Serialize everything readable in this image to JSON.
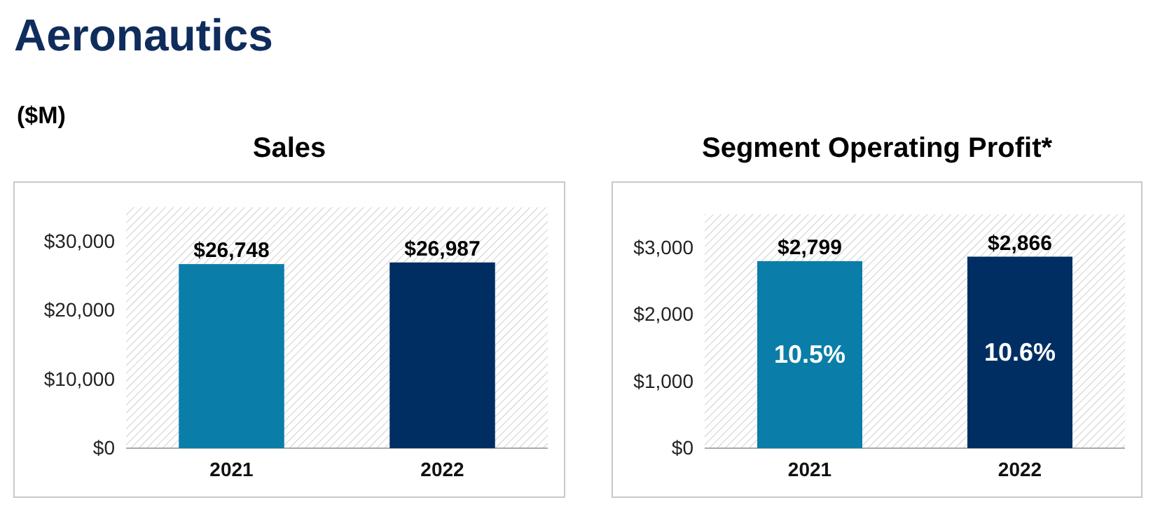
{
  "chart_data": [
    {
      "type": "bar",
      "title": "Sales",
      "annotations": [
        "Aeronautics",
        "($M)"
      ],
      "categories": [
        "2021",
        "2022"
      ],
      "values": [
        26748,
        26987
      ],
      "colors": [
        "#0a7ea8",
        "#002e63"
      ],
      "value_labels": [
        "$26,748",
        "$26,987"
      ],
      "ylim": [
        0,
        35000
      ],
      "yticks": [
        {
          "value": 0,
          "label": "$0"
        },
        {
          "value": 10000,
          "label": "$10,000"
        },
        {
          "value": 20000,
          "label": "$20,000"
        },
        {
          "value": 30000,
          "label": "$30,000"
        }
      ]
    },
    {
      "type": "bar",
      "title": "Segment Operating Profit*",
      "categories": [
        "2021",
        "2022"
      ],
      "values": [
        2799,
        2866
      ],
      "colors": [
        "#0a7ea8",
        "#002e63"
      ],
      "value_labels": [
        "$2,799",
        "$2,866"
      ],
      "ylim": [
        0,
        3500
      ],
      "yticks": [
        {
          "value": 0,
          "label": "$0"
        },
        {
          "value": 1000,
          "label": "$1,000"
        },
        {
          "value": 2000,
          "label": "$2,000"
        },
        {
          "value": 3000,
          "label": "$3,000"
        }
      ],
      "annotations": [
        "10.5%",
        "10.6%"
      ]
    }
  ]
}
